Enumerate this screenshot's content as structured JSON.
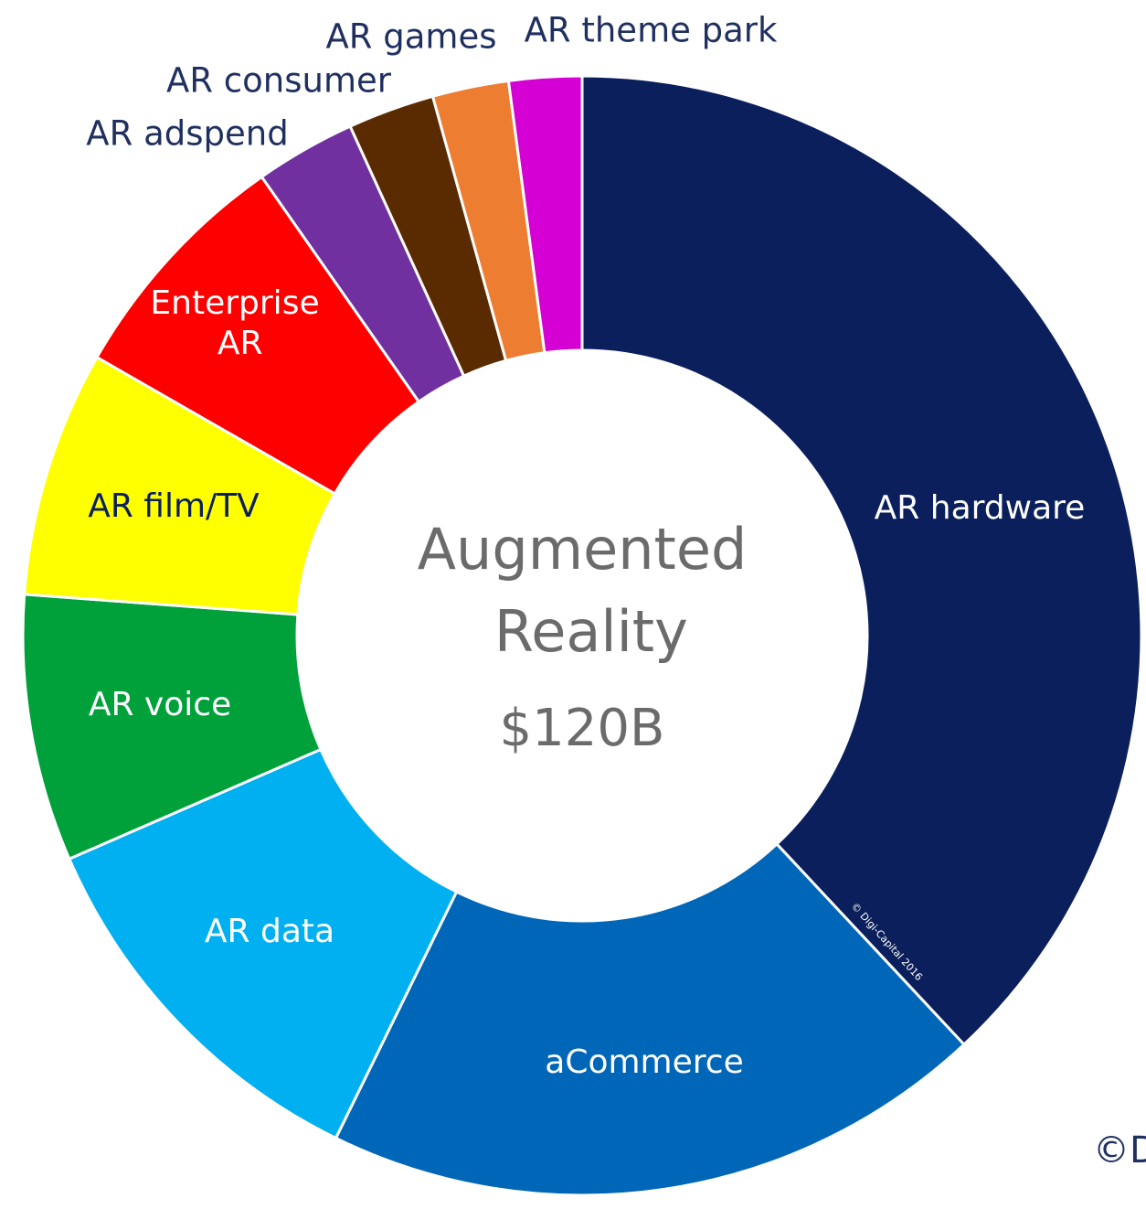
{
  "chart_data": {
    "type": "donut",
    "title": "Augmented Reality",
    "subtitle": "$120B",
    "categories": [
      "AR hardware",
      "aCommerce",
      "AR data",
      "AR voice",
      "AR film/TV",
      "Enterprise AR",
      "AR adspend",
      "AR consumer",
      "AR games",
      "AR theme park"
    ],
    "values": [
      38,
      19.2,
      11.2,
      7.7,
      7.1,
      7,
      2.9,
      2.5,
      2.2,
      2.1
    ],
    "colors": [
      "#0a1f5c",
      "#0066b8",
      "#00b0f0",
      "#00a13a",
      "#ffff00",
      "#ff0000",
      "#7030a0",
      "#5a2a00",
      "#ed7d31",
      "#d400d4"
    ],
    "source": "© Digi-Capital 2016",
    "watermark": "©D"
  }
}
